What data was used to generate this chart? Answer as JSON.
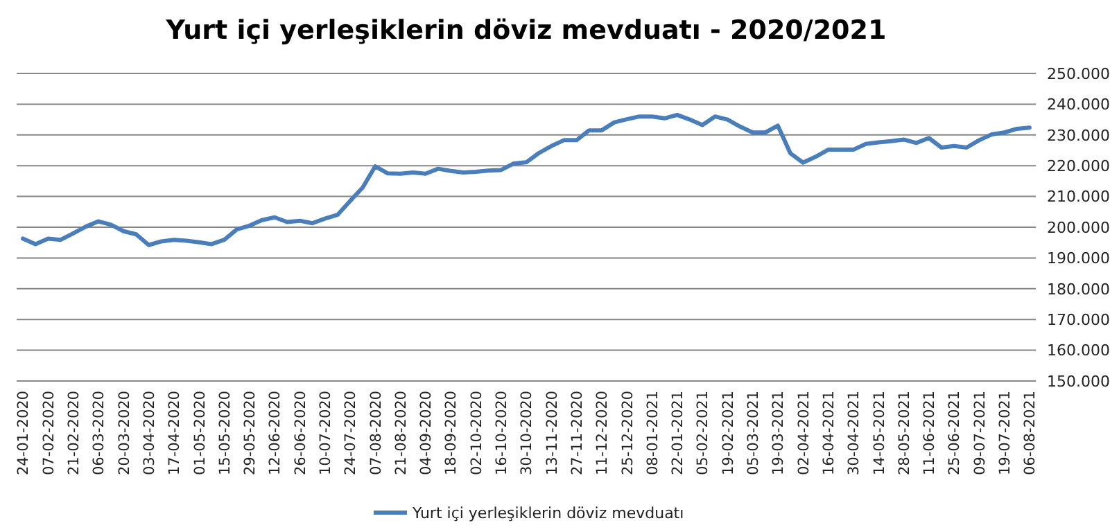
{
  "chart_data": {
    "type": "line",
    "title": "Yurt  içi yerleşiklerin döviz mevduatı - 2020/2021",
    "categories": [
      "24-01-2020",
      null,
      "07-02-2020",
      null,
      "21-02-2020",
      null,
      "06-03-2020",
      null,
      "20-03-2020",
      null,
      "03-04-2020",
      null,
      "17-04-2020",
      null,
      "01-05-2020",
      null,
      "15-05-2020",
      null,
      "29-05-2020",
      null,
      "12-06-2020",
      null,
      "26-06-2020",
      null,
      "10-07-2020",
      null,
      "24-07-2020",
      null,
      "07-08-2020",
      null,
      "21-08-2020",
      null,
      "04-09-2020",
      null,
      "18-09-2020",
      null,
      "02-10-2020",
      null,
      "16-10-2020",
      null,
      "30-10-2020",
      null,
      "13-11-2020",
      null,
      "27-11-2020",
      null,
      "11-12-2020",
      null,
      "25-12-2020",
      null,
      "08-01-2021",
      null,
      "22-01-2021",
      null,
      "05-02-2021",
      null,
      "19-02-2021",
      null,
      "05-03-2021",
      null,
      "19-03-2021",
      null,
      "02-04-2021",
      null,
      "16-04-2021",
      null,
      "30-04-2021",
      null,
      "14-05-2021",
      null,
      "28-05-2021",
      null,
      "11-06-2021",
      null,
      "25-06-2021",
      null,
      "09-07-2021",
      null,
      "19-07-2021",
      null,
      "06-08-2021"
    ],
    "series": [
      {
        "name": "Yurt  içi yerleşiklerin döviz mevduatı",
        "color": "#4a7ebb",
        "values": [
          196300,
          194500,
          196300,
          195900,
          198000,
          200200,
          201900,
          200800,
          198700,
          197700,
          194200,
          195400,
          195900,
          195600,
          195100,
          194500,
          195900,
          199300,
          200500,
          202300,
          203200,
          201700,
          202100,
          201300,
          202800,
          204000,
          208500,
          212900,
          219800,
          217500,
          217400,
          217800,
          217400,
          219000,
          218300,
          217800,
          218000,
          218400,
          218600,
          220700,
          221100,
          224100,
          226400,
          228300,
          228300,
          231500,
          231500,
          234100,
          235100,
          236000,
          236000,
          235400,
          236500,
          235000,
          233200,
          236000,
          235000,
          232700,
          230800,
          230800,
          233000,
          224000,
          221000,
          222900,
          225200,
          225200,
          225200,
          227100,
          227600,
          228000,
          228500,
          227400,
          229000,
          225900,
          226400,
          225900,
          228300,
          230200,
          230800,
          232000,
          232400
        ]
      }
    ],
    "ylim": [
      150000,
      250000
    ],
    "yticks": [
      {
        "value": 150000,
        "label": "150.000"
      },
      {
        "value": 160000,
        "label": "160.000"
      },
      {
        "value": 170000,
        "label": "170.000"
      },
      {
        "value": 180000,
        "label": "180.000"
      },
      {
        "value": 190000,
        "label": "190.000"
      },
      {
        "value": 200000,
        "label": "200.000"
      },
      {
        "value": 210000,
        "label": "210.000"
      },
      {
        "value": 220000,
        "label": "220.000"
      },
      {
        "value": 230000,
        "label": "230.000"
      },
      {
        "value": 240000,
        "label": "240.000"
      },
      {
        "value": 250000,
        "label": "250.000"
      }
    ],
    "grid": "y",
    "legend": "bottom",
    "marker": "none",
    "line_style": "solid"
  }
}
